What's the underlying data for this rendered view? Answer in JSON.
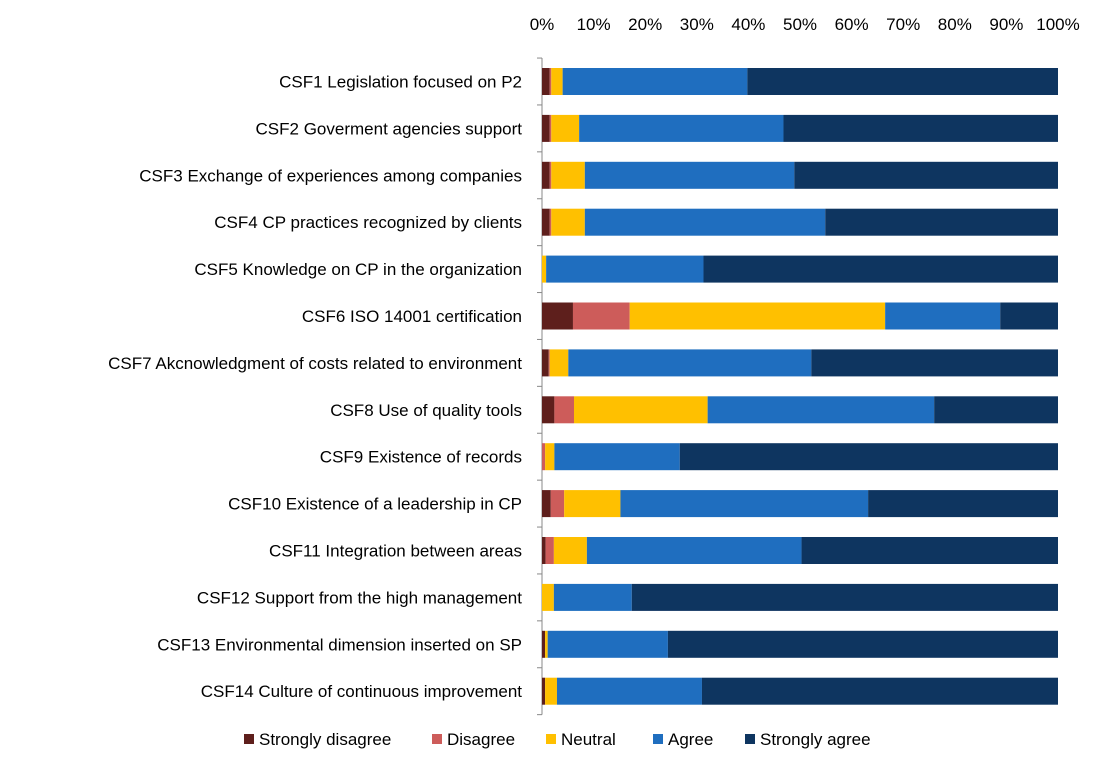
{
  "chart_data": {
    "type": "bar",
    "orientation": "horizontal",
    "stacked": "percent",
    "title": "",
    "xlabel": "",
    "ylabel": "",
    "xlim": [
      0,
      100
    ],
    "x_ticks": [
      "0%",
      "10%",
      "20%",
      "30%",
      "40%",
      "50%",
      "60%",
      "70%",
      "80%",
      "90%",
      "100%"
    ],
    "x_axis_position": "top",
    "grid": false,
    "legend_position": "bottom",
    "categories": [
      "CSF1 Legislation focused on P2",
      "CSF2 Goverment agencies support",
      "CSF3 Exchange of experiences among companies",
      "CSF4 CP practices recognized by clients",
      "CSF5 Knowledge on CP in the organization",
      "CSF6 ISO 14001 certification",
      "CSF7 Akcnowledgment of costs related to environment",
      "CSF8 Use of quality tools",
      "CSF9 Existence of records",
      "CSF10 Existence of a leadership in CP",
      "CSF11 Integration between areas",
      "CSF12 Support from the high management",
      "CSF13 Environmental dimension inserted on SP",
      "CSF14 Culture of continuous improvement"
    ],
    "series": [
      {
        "name": "Strongly disagree",
        "color": "#5e1f1c",
        "values": [
          1.5,
          1.5,
          1.5,
          1.5,
          0,
          6,
          1.3,
          2.4,
          0,
          1.7,
          0.7,
          0,
          0.6,
          0.6
        ]
      },
      {
        "name": "Disagree",
        "color": "#cd5c5a",
        "values": [
          0.3,
          0.3,
          0.3,
          0.3,
          0,
          11,
          0.2,
          3.8,
          0.6,
          2.6,
          1.6,
          0,
          0,
          0
        ]
      },
      {
        "name": "Neutral",
        "color": "#ffc000",
        "values": [
          2.2,
          5.4,
          6.5,
          6.5,
          0.8,
          49.5,
          3.6,
          25.9,
          1.8,
          10.9,
          6.4,
          2.3,
          0.5,
          2.3
        ]
      },
      {
        "name": "Agree",
        "color": "#1f6ebf",
        "values": [
          35.8,
          39.6,
          40.6,
          46.6,
          30.5,
          22.3,
          47.1,
          43.9,
          24.3,
          48,
          41.6,
          15.1,
          23.3,
          28.1
        ]
      },
      {
        "name": "Strongly agree",
        "color": "#0e3560",
        "values": [
          60.2,
          53.2,
          51.1,
          45.1,
          68.7,
          11.2,
          47.8,
          24,
          73.3,
          36.8,
          49.7,
          82.6,
          75.6,
          69
        ]
      }
    ]
  }
}
